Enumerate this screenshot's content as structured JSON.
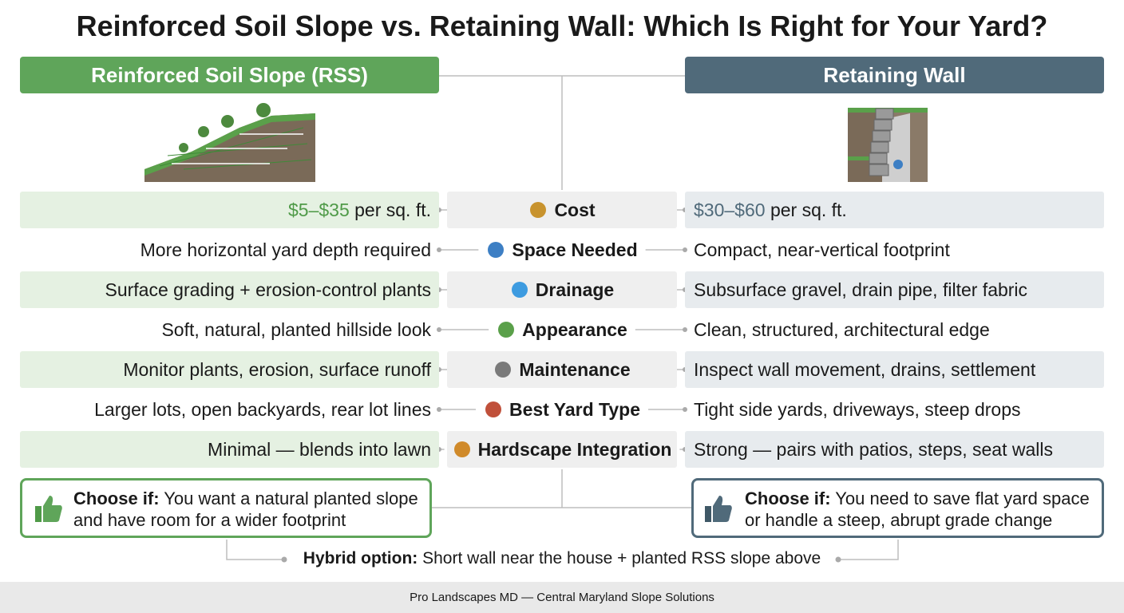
{
  "title": "Reinforced Soil Slope vs. Retaining Wall: Which Is Right for Your Yard?",
  "left_header": "Reinforced Soil Slope (RSS)",
  "right_header": "Retaining Wall",
  "rows": [
    {
      "label": "Cost",
      "left": {
        "price": "$5–$35",
        "unit": "per sq. ft."
      },
      "right": {
        "price": "$30–$60",
        "unit": "per sq. ft."
      }
    },
    {
      "label": "Space Needed",
      "left": "More horizontal yard depth required",
      "right": "Compact, near-vertical footprint"
    },
    {
      "label": "Drainage",
      "left": "Surface grading + erosion-control plants",
      "right": "Subsurface gravel, drain pipe, filter fabric"
    },
    {
      "label": "Appearance",
      "left": "Soft, natural, planted hillside look",
      "right": "Clean, structured, architectural edge"
    },
    {
      "label": "Maintenance",
      "left": "Monitor plants, erosion, surface runoff",
      "right": "Inspect wall movement, drains, settlement"
    },
    {
      "label": "Best Yard Type",
      "left": "Larger lots, open backyards, rear lot lines",
      "right": "Tight side yards, driveways, steep drops"
    },
    {
      "label": "Hardscape Integration",
      "left": "Minimal — blends into lawn",
      "right": "Strong — pairs with patios, steps, seat walls"
    }
  ],
  "left_choose": {
    "lead": "Choose if:",
    "text": "You want a natural planted slope and have room for a wider footprint"
  },
  "right_choose": {
    "lead": "Choose if:",
    "text": "You need to save flat yard space or handle a steep, abrupt grade change"
  },
  "hybrid": {
    "lead": "Hybrid option:",
    "text": "Short wall near the house + planted RSS slope above"
  },
  "footer": "Pro Landscapes MD — Central Maryland Slope Solutions"
}
